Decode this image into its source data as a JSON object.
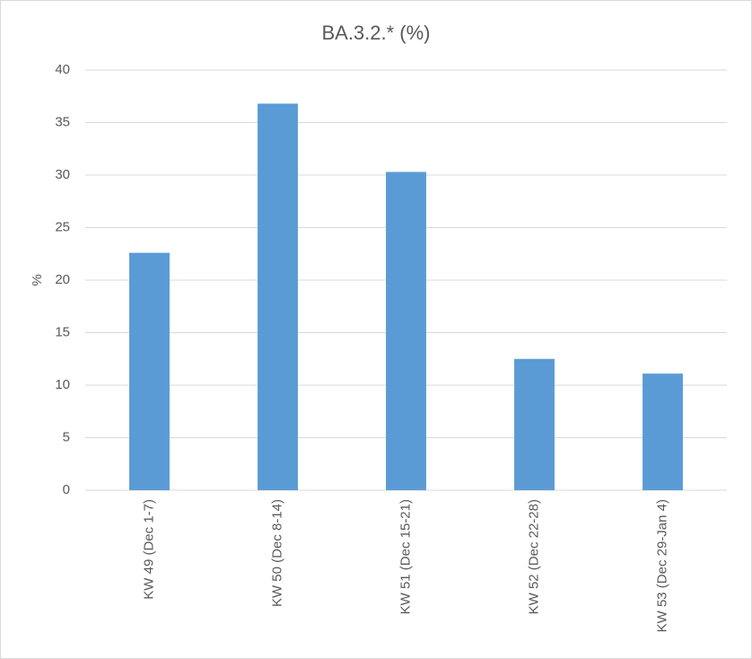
{
  "chart_data": {
    "type": "bar",
    "title": "BA.3.2.* (%)",
    "y_label": "%",
    "categories": [
      "KW 49 (Dec 1-7)",
      "KW 50 (Dec 8-14)",
      "KW 51 (Dec 15-21)",
      "KW 52 (Dec 22-28)",
      "KW 53 (Dec 29-Jan 4)"
    ],
    "values": [
      22.6,
      36.8,
      30.3,
      12.5,
      11.1
    ],
    "color": "#5b9bd5",
    "ylim": [
      0,
      40
    ],
    "yticks": [
      0,
      5,
      10,
      15,
      20,
      25,
      30,
      35,
      40
    ],
    "grid": true
  }
}
